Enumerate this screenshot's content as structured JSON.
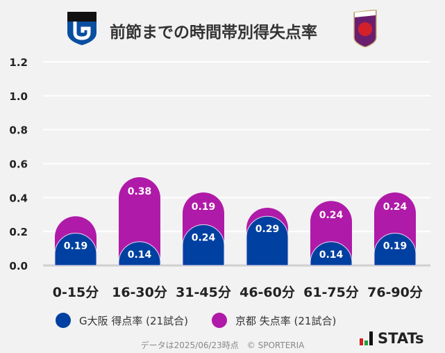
{
  "header": {
    "title": "前節までの時間帯別得失点率",
    "home_logo": "gamba-osaka-crest",
    "away_logo": "kyoto-sanga-crest"
  },
  "chart_data": {
    "type": "bar",
    "stacked": true,
    "categories": [
      "0-15分",
      "16-30分",
      "31-45分",
      "46-60分",
      "61-75分",
      "76-90分"
    ],
    "series": [
      {
        "name": "G大阪 得点率 (21試合)",
        "color": "#0040a0",
        "values": [
          0.19,
          0.14,
          0.24,
          0.29,
          0.14,
          0.19
        ]
      },
      {
        "name": "京都 失点率 (21試合)",
        "color": "#b01aa8",
        "values": [
          0.1,
          0.38,
          0.19,
          0.05,
          0.24,
          0.24
        ]
      }
    ],
    "yticks": [
      "0.0",
      "0.2",
      "0.4",
      "0.6",
      "0.8",
      "1.0",
      "1.2"
    ],
    "ylim": [
      0,
      1.2
    ],
    "grid": true,
    "legend": "bottom"
  },
  "legend": {
    "home": "G大阪 得点率 (21試合)",
    "away": "京都 失点率 (21試合)"
  },
  "footer": {
    "note": "データは2025/06/23時点　© SPORTERIA",
    "brand": "STATs"
  }
}
